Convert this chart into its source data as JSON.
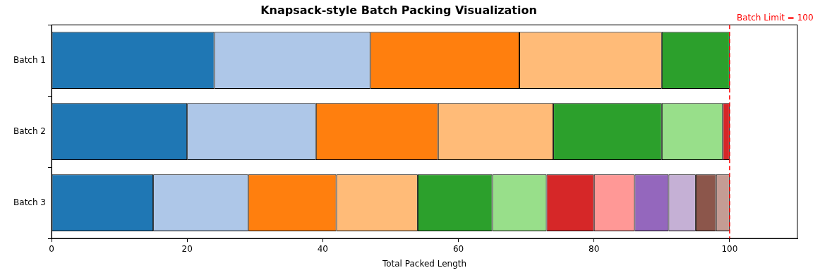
{
  "chart_data": {
    "type": "bar",
    "orientation": "horizontal",
    "stacked": true,
    "title": "Knapsack-style Batch Packing Visualization",
    "xlabel": "Total Packed Length",
    "categories": [
      "Batch 1",
      "Batch 2",
      "Batch 3"
    ],
    "series": [
      {
        "color": "#1f77b4",
        "values": [
          24,
          20,
          15
        ]
      },
      {
        "color": "#aec7e8",
        "values": [
          23,
          19,
          14
        ]
      },
      {
        "color": "#ff7f0e",
        "values": [
          22,
          18,
          13
        ]
      },
      {
        "color": "#ffbb78",
        "values": [
          21,
          17,
          12
        ]
      },
      {
        "color": "#2ca02c",
        "values": [
          10,
          16,
          11
        ]
      },
      {
        "color": "#98df8a",
        "values": [
          null,
          9,
          8
        ]
      },
      {
        "color": "#d62728",
        "values": [
          null,
          1,
          7
        ]
      },
      {
        "color": "#ff9896",
        "values": [
          null,
          null,
          6
        ]
      },
      {
        "color": "#9467bd",
        "values": [
          null,
          null,
          5
        ]
      },
      {
        "color": "#c5b0d5",
        "values": [
          null,
          null,
          4
        ]
      },
      {
        "color": "#8c564b",
        "values": [
          null,
          null,
          3
        ]
      },
      {
        "color": "#c49c94",
        "values": [
          null,
          null,
          2
        ]
      }
    ],
    "xlim": [
      0,
      110
    ],
    "xticks": [
      0,
      20,
      40,
      60,
      80,
      100
    ],
    "ref_lines": [
      {
        "axis": "x",
        "value": 100,
        "label": "Batch Limit = 100",
        "color": "#ff0000",
        "line_style": "dashed"
      }
    ],
    "grid": false,
    "legend": false
  }
}
